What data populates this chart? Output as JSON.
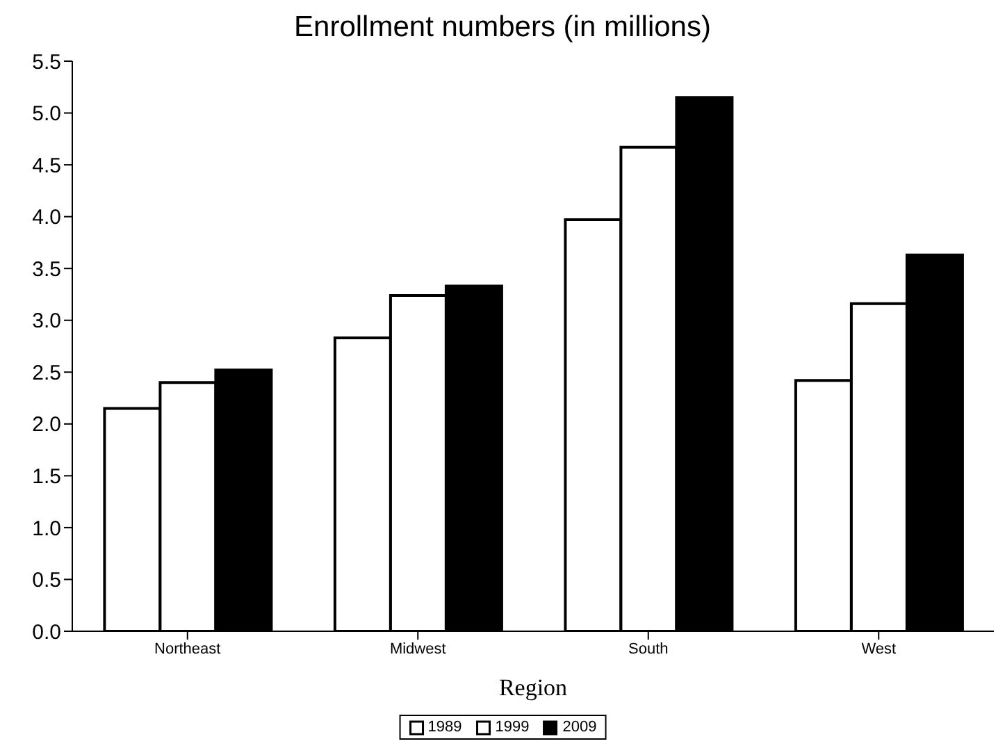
{
  "chart_data": {
    "type": "bar",
    "title": "Enrollment numbers (in millions)",
    "xlabel": "Region",
    "categories": [
      "Northeast",
      "Midwest",
      "South",
      "West"
    ],
    "series": [
      {
        "name": "1989",
        "color": "#ffffff",
        "values": [
          2.15,
          2.83,
          3.97,
          2.42
        ]
      },
      {
        "name": "1999",
        "color": "#ffffff",
        "values": [
          2.4,
          3.24,
          4.67,
          3.16
        ]
      },
      {
        "name": "2009",
        "color": "#000000",
        "values": [
          2.52,
          3.33,
          5.15,
          3.63
        ]
      }
    ],
    "ylim": [
      0,
      5.5
    ],
    "yticks": [
      {
        "value": 0,
        "label": "0.0"
      },
      0.5,
      {
        "value": 1,
        "label": "1.0"
      },
      1.5,
      {
        "value": 2,
        "label": "2.0"
      },
      2.5,
      {
        "value": 3,
        "label": "3.0"
      },
      3.5,
      {
        "value": 4,
        "label": "4.0"
      },
      4.5,
      {
        "value": 5,
        "label": "5.0"
      },
      5.5
    ],
    "grid": false,
    "legend": "bottom"
  }
}
